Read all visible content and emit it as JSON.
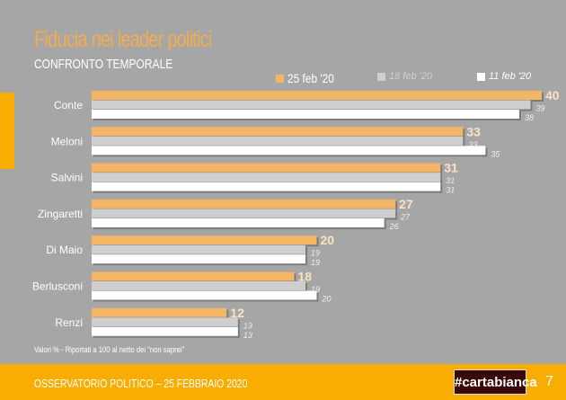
{
  "title": "Fiducia nei leader politici",
  "subtitle": "CONFRONTO TEMPORALE",
  "note": "Valori % - Riportati a 100 al netto dei \"non saprei\"",
  "footer": {
    "text": "OSSERVATORIO POLITICO – 25 FEBBRAIO 2020",
    "logo": "#cartabianca",
    "page": "7"
  },
  "colors": {
    "s1": "#f4b565",
    "s2": "#cfcfcf",
    "s3": "#ffffff",
    "background": "#a6a6a6",
    "accent": "#f9ad00"
  },
  "chart_data": {
    "type": "bar",
    "orientation": "horizontal",
    "title": "Fiducia nei leader politici",
    "categories": [
      "Conte",
      "Meloni",
      "Salvini",
      "Zingaretti",
      "Di Maio",
      "Berlusconi",
      "Renzi"
    ],
    "series": [
      {
        "name": "25 feb '20",
        "values": [
          40,
          33,
          31,
          27,
          20,
          18,
          12
        ]
      },
      {
        "name": "18 feb '20",
        "values": [
          39,
          33,
          31,
          27,
          19,
          19,
          13
        ]
      },
      {
        "name": "11 feb '20",
        "values": [
          38,
          35,
          31,
          26,
          19,
          20,
          13
        ]
      }
    ],
    "xlim": [
      0,
      40
    ],
    "legend": "top-right",
    "grid": false
  }
}
